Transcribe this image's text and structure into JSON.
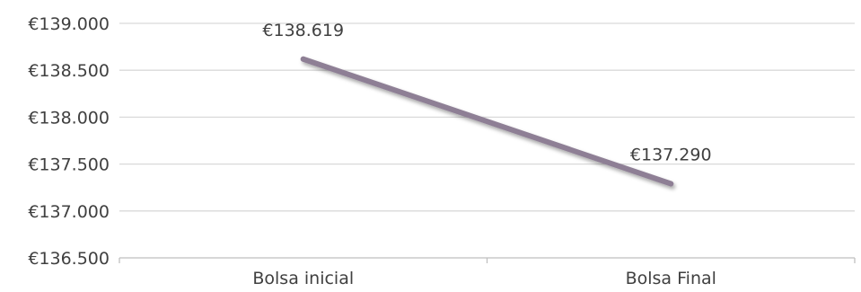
{
  "chart_data": {
    "type": "line",
    "categories": [
      "Bolsa inicial",
      "Bolsa Final"
    ],
    "series": [
      {
        "values": [
          138619,
          137290
        ],
        "data_labels": [
          "€138.619",
          "€137.290"
        ],
        "color": "#8e7f95"
      }
    ],
    "ylim": [
      136500,
      139000
    ],
    "yticks": [
      139000,
      138500,
      138000,
      137500,
      137000,
      136500
    ],
    "ytick_labels": [
      "€139.000",
      "€138.500",
      "€138.000",
      "€137.500",
      "€137.000",
      "€136.500"
    ],
    "grid": true,
    "grid_color": "#d9d9d9",
    "axis_color": "#bfbfbf",
    "text_color": "#404040",
    "title": "",
    "xlabel": "",
    "ylabel": "",
    "legend": "none"
  }
}
